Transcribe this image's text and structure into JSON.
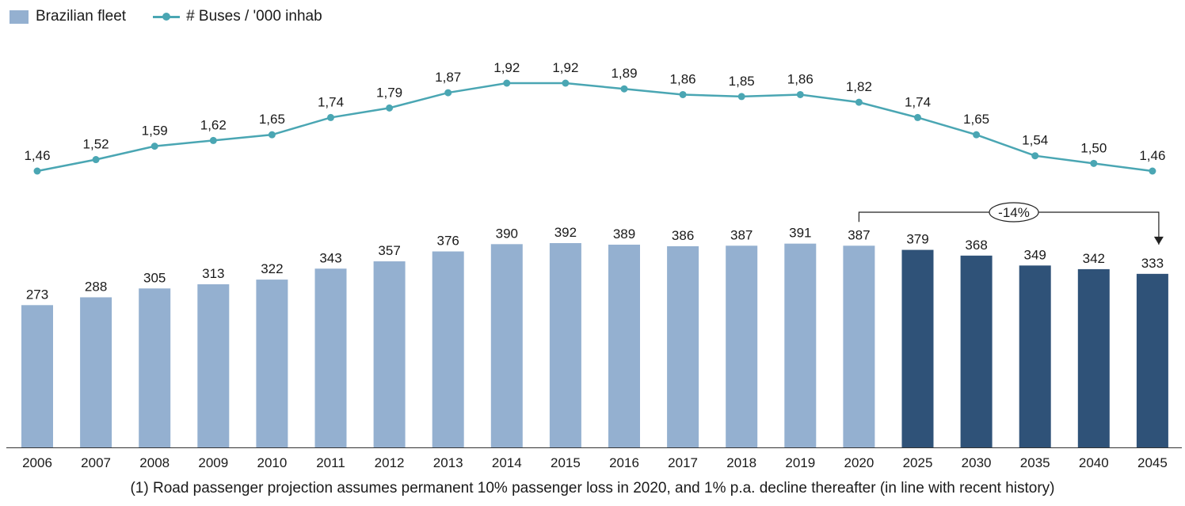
{
  "legend": {
    "bar_label": "Brazilian fleet",
    "line_label": "# Buses / '000 inhab"
  },
  "colors": {
    "historical_bar": "#94b0d0",
    "projection_bar": "#2f5278",
    "line": "#4aa6b3",
    "text": "#1a1a1a"
  },
  "chart_data": {
    "type": "bar",
    "categories": [
      "2006",
      "2007",
      "2008",
      "2009",
      "2010",
      "2011",
      "2012",
      "2013",
      "2014",
      "2015",
      "2016",
      "2017",
      "2018",
      "2019",
      "2020",
      "2025",
      "2030",
      "2035",
      "2040",
      "2045"
    ],
    "series": [
      {
        "name": "Brazilian fleet",
        "type": "bar",
        "values": [
          273,
          288,
          305,
          313,
          322,
          343,
          357,
          376,
          390,
          392,
          389,
          386,
          387,
          391,
          387,
          379,
          368,
          349,
          342,
          333
        ],
        "labels": [
          "273",
          "288",
          "305",
          "313",
          "322",
          "343",
          "357",
          "376",
          "390",
          "392",
          "389",
          "386",
          "387",
          "391",
          "387",
          "379",
          "368",
          "349",
          "342",
          "333"
        ]
      },
      {
        "name": "# Buses / '000 inhab",
        "type": "line",
        "values": [
          1.46,
          1.52,
          1.59,
          1.62,
          1.65,
          1.74,
          1.79,
          1.87,
          1.92,
          1.92,
          1.89,
          1.86,
          1.85,
          1.86,
          1.82,
          1.74,
          1.65,
          1.54,
          1.5,
          1.46
        ],
        "labels": [
          "1,46",
          "1,52",
          "1,59",
          "1,62",
          "1,65",
          "1,74",
          "1,79",
          "1,87",
          "1,92",
          "1,92",
          "1,89",
          "1,86",
          "1,85",
          "1,86",
          "1,82",
          "1,74",
          "1,65",
          "1,54",
          "1,50",
          "1,46"
        ]
      }
    ],
    "projection_categories": [
      "2025",
      "2030",
      "2035",
      "2040",
      "2045"
    ],
    "annotation": {
      "label": "-14%",
      "from": "2020",
      "to": "2045"
    },
    "bar_ylim": [
      0,
      400
    ],
    "line_ylim": [
      1.46,
      1.92
    ]
  },
  "footnote": "(1) Road passenger projection assumes permanent 10% passenger loss in 2020, and 1% p.a. decline thereafter (in line with recent history)"
}
